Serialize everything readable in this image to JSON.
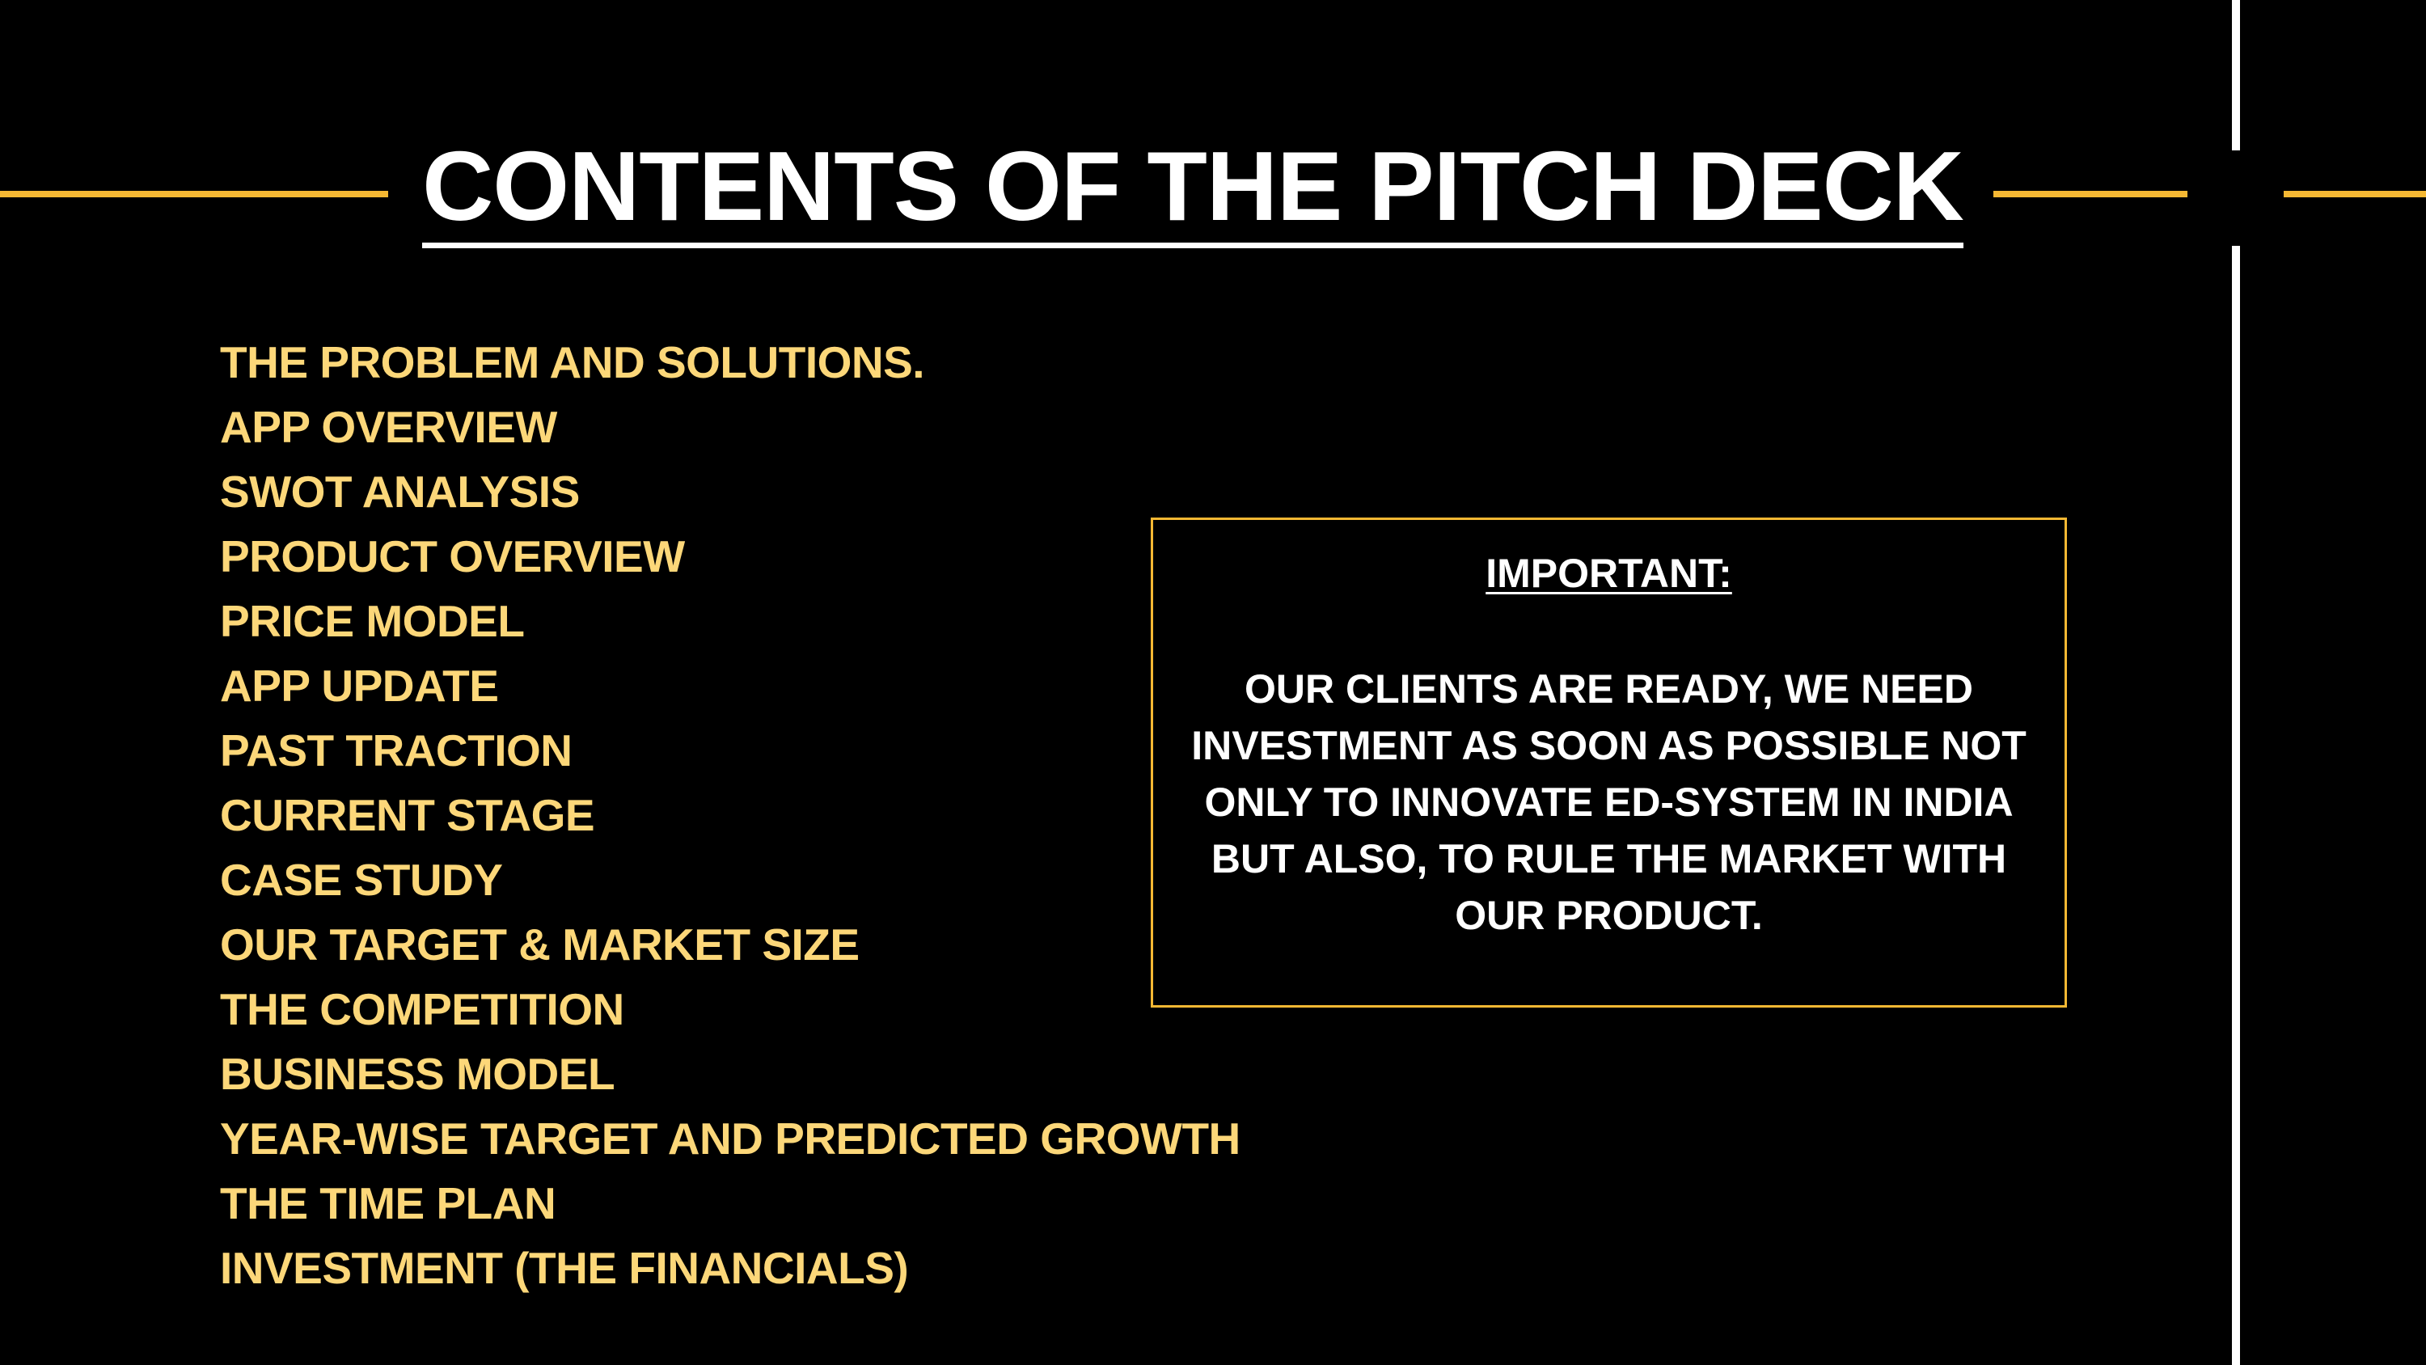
{
  "colors": {
    "background": "#000000",
    "accent": "#f5b833",
    "list_text": "#fcd779",
    "title_text": "#ffffff",
    "divider_vertical": "#ffffff"
  },
  "slide": {
    "title": "CONTENTS OF THE PITCH DECK",
    "contents": [
      "THE PROBLEM AND SOLUTIONS.",
      "APP OVERVIEW",
      "SWOT ANALYSIS",
      "PRODUCT OVERVIEW",
      "PRICE MODEL",
      "APP UPDATE",
      "PAST TRACTION",
      "CURRENT STAGE",
      "CASE STUDY",
      "OUR TARGET & MARKET SIZE",
      "THE COMPETITION",
      "BUSINESS MODEL",
      "YEAR-WISE TARGET AND PREDICTED GROWTH",
      "THE TIME PLAN",
      "INVESTMENT (THE FINANCIALS)"
    ],
    "notice": {
      "heading": "IMPORTANT:",
      "body": "OUR CLIENTS ARE READY, WE NEED INVESTMENT AS SOON AS POSSIBLE NOT ONLY TO INNOVATE ED-SYSTEM IN INDIA BUT ALSO, TO RULE THE MARKET WITH OUR PRODUCT."
    }
  }
}
